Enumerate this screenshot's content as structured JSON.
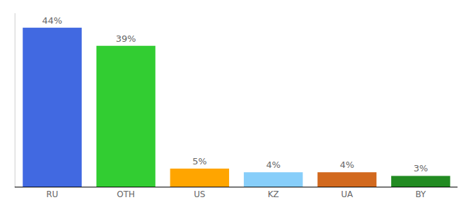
{
  "chart_data": {
    "type": "bar",
    "categories": [
      "RU",
      "OTH",
      "US",
      "KZ",
      "UA",
      "BY"
    ],
    "values": [
      44,
      39,
      5,
      4,
      4,
      3
    ],
    "value_labels": [
      "44%",
      "39%",
      "5%",
      "4%",
      "4%",
      "3%"
    ],
    "colors": [
      "#4169e1",
      "#32cd32",
      "#ffa500",
      "#87cefa",
      "#d2691e",
      "#228b22"
    ],
    "ylim": [
      0,
      48
    ],
    "yticks": [],
    "grid": false,
    "data_labels": true,
    "tick_labels": "x"
  }
}
